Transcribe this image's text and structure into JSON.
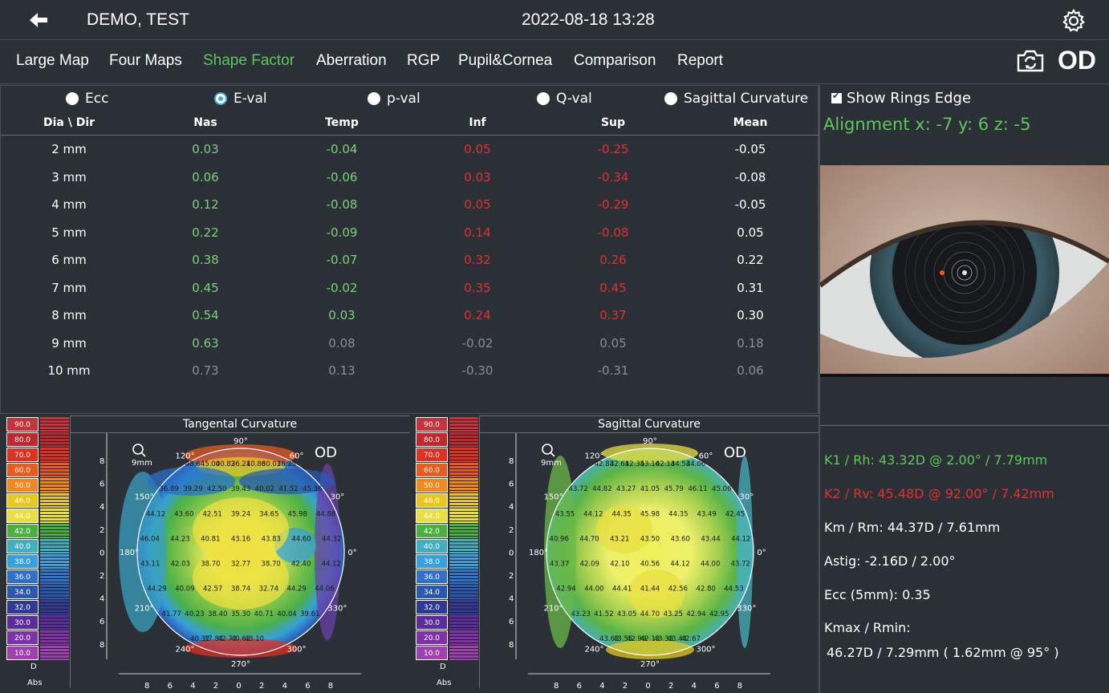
{
  "header": {
    "patient": "DEMO, TEST",
    "datetime": "2022-08-18 13:28"
  },
  "nav": {
    "tabs": [
      "Large Map",
      "Four Maps",
      "Shape Factor",
      "Aberration",
      "RGP",
      "Pupil&Cornea",
      "Comparison",
      "Report"
    ],
    "active": "Shape Factor",
    "eye": "OD"
  },
  "radios": {
    "options": [
      "Ecc",
      "E-val",
      "p-val",
      "Q-val",
      "Sagittal Curvature"
    ],
    "selected": "E-val"
  },
  "table": {
    "headers": [
      "Dia \\ Dir",
      "Nas",
      "Temp",
      "Inf",
      "Sup",
      "Mean"
    ],
    "rows": [
      [
        "2 mm",
        "0.03",
        "-0.04",
        "0.05",
        "-0.25",
        "-0.05"
      ],
      [
        "3 mm",
        "0.06",
        "-0.06",
        "0.03",
        "-0.34",
        "-0.08"
      ],
      [
        "4 mm",
        "0.12",
        "-0.08",
        "0.05",
        "-0.29",
        "-0.05"
      ],
      [
        "5 mm",
        "0.22",
        "-0.09",
        "0.14",
        "-0.08",
        "0.05"
      ],
      [
        "6 mm",
        "0.38",
        "-0.07",
        "0.32",
        "0.26",
        "0.22"
      ],
      [
        "7 mm",
        "0.45",
        "-0.02",
        "0.35",
        "0.45",
        "0.31"
      ],
      [
        "8 mm",
        "0.54",
        "0.03",
        "0.24",
        "0.37",
        "0.30"
      ],
      [
        "9 mm",
        "0.63",
        "0.08",
        "-0.02",
        "0.05",
        "0.18"
      ],
      [
        "10 mm",
        "0.73",
        "0.13",
        "-0.30",
        "-0.31",
        "0.06"
      ]
    ],
    "colors": {
      "nas": "#7cd07c",
      "temp": "#7cd07c",
      "inf": "#e03030",
      "sup": "#e03030",
      "mean": "#ffffff",
      "dim": "#8a8f97"
    }
  },
  "right": {
    "show_rings_edge": "Show Rings Edge",
    "alignment": "Alignment x: -7  y: 6  z: -5",
    "k1": "K1 / Rh:  43.32D @ 2.00° / 7.79mm",
    "k2": "K2 / Rv:  45.48D @ 92.00° / 7.42mm",
    "km": "Km / Rm:  44.37D / 7.61mm",
    "astig": "Astig:  -2.16D / 2.00°",
    "ecc": "Ecc (5mm):  0.35",
    "kmax_label": "Kmax / Rmin:",
    "kmax_value": "46.27D / 7.29mm ( 1.62mm @ 95° )"
  },
  "scale": {
    "labels": [
      "90.0",
      "80.0",
      "70.0",
      "60.0",
      "50.0",
      "46.0",
      "44.0",
      "42.0",
      "40.0",
      "38.0",
      "36.0",
      "34.0",
      "32.0",
      "30.0",
      "20.0",
      "10.0"
    ],
    "colors": [
      "#c8323c",
      "#c0282e",
      "#e03020",
      "#e85a1e",
      "#f08a1e",
      "#e8c81e",
      "#e8e040",
      "#4ab040",
      "#40b0c0",
      "#38a0e0",
      "#3070c8",
      "#2858b0",
      "#303898",
      "#5a2ca0",
      "#8030a8",
      "#a040b0"
    ],
    "unit_top": "D",
    "unit_bottom": "Abs"
  },
  "maps": [
    {
      "title": "Tangental Curvature",
      "od": "OD",
      "zoom_label": "9mm",
      "deg90": "90°",
      "deg180": "180°",
      "deg270": "270°",
      "deg0": "0°",
      "deg60": "60°",
      "deg120": "120°",
      "deg150": "150°",
      "deg30": "30°",
      "deg210": "210°",
      "deg240": "240°",
      "deg300": "300°",
      "deg330": "330°",
      "values": [
        "48.64",
        "45.00",
        "40.82",
        "36.21",
        "40.86",
        "30.01",
        "36.25",
        "36.89",
        "39.29",
        "42.50",
        "39.43",
        "40.02",
        "41.52",
        "45.36",
        "44.12",
        "43.60",
        "42.51",
        "39.24",
        "34.65",
        "45.98",
        "44.88",
        "46.04",
        "44.23",
        "40.81",
        "43.16",
        "43.83",
        "44.60",
        "44.32",
        "43.11",
        "42.03",
        "38.70",
        "32.77",
        "38.70",
        "42.40",
        "44.12",
        "44.29",
        "40.09",
        "42.57",
        "38.74",
        "32.74",
        "44.29",
        "44.06",
        "41.77",
        "40.23",
        "38.40",
        "35.30",
        "40.71",
        "40.04",
        "39.61",
        "40.32",
        "37.84",
        "42.73",
        "40.63",
        "43.10"
      ],
      "axis_ticks_y": [
        "8",
        "6",
        "4",
        "2",
        "0",
        "2",
        "4",
        "6",
        "8"
      ],
      "axis_ticks_x": [
        "8",
        "6",
        "4",
        "2",
        "0",
        "2",
        "4",
        "6",
        "8"
      ]
    },
    {
      "title": "Sagittal Curvature",
      "od": "OD",
      "zoom_label": "9mm",
      "deg90": "90°",
      "deg180": "180°",
      "deg270": "270°",
      "deg0": "0°",
      "deg60": "60°",
      "deg120": "120°",
      "deg150": "150°",
      "deg30": "30°",
      "deg210": "210°",
      "deg240": "240°",
      "deg300": "300°",
      "deg330": "330°",
      "values": [
        "42.83",
        "42.61",
        "42.35",
        "43.16",
        "42.13",
        "44.53",
        "44.06",
        "43.72",
        "44.82",
        "43.27",
        "41.05",
        "45.79",
        "46.11",
        "45.06",
        "43.55",
        "44.12",
        "44.35",
        "45.98",
        "44.35",
        "43.49",
        "42.45",
        "40.96",
        "44.70",
        "43.21",
        "43.50",
        "43.60",
        "43.44",
        "44.12",
        "43.37",
        "42.09",
        "42.10",
        "40.56",
        "44.12",
        "44.00",
        "43.72",
        "42.94",
        "44.00",
        "44.41",
        "41.44",
        "42.56",
        "42.80",
        "44.53",
        "43.23",
        "41.52",
        "43.05",
        "44.70",
        "43.25",
        "42.94",
        "42.95",
        "43.63",
        "43.55",
        "42.99",
        "42.13",
        "43.33",
        "43.44",
        "42.67"
      ],
      "axis_ticks_y": [
        "8",
        "6",
        "4",
        "2",
        "0",
        "2",
        "4",
        "6",
        "8"
      ],
      "axis_ticks_x": [
        "8",
        "6",
        "4",
        "2",
        "0",
        "2",
        "4",
        "6",
        "8"
      ]
    }
  ]
}
